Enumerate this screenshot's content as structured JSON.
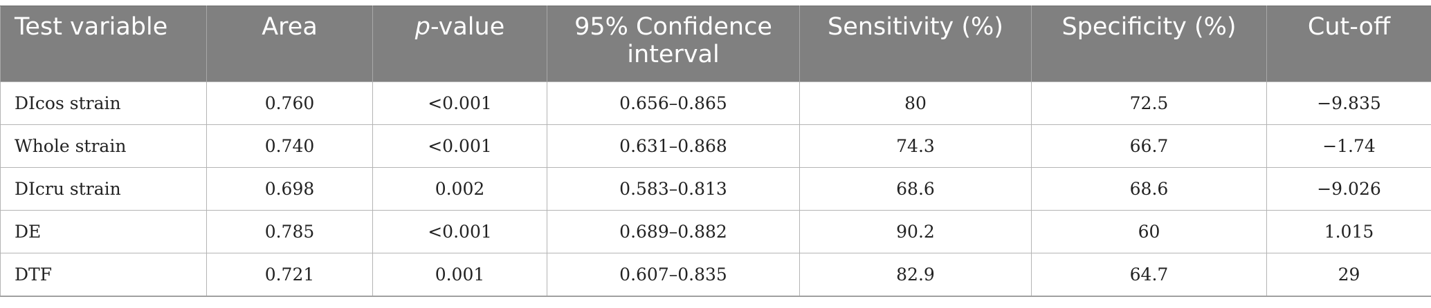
{
  "table": {
    "headers": {
      "test_variable": "Test variable",
      "area": "Area",
      "p_value_italic": "p",
      "p_value_rest": "-value",
      "ci": "95% Confidence interval",
      "sensitivity": "Sensitivity (%)",
      "specificity": "Specificity (%)",
      "cutoff": "Cut-off"
    },
    "rows": [
      {
        "variable": "DIcos strain",
        "area": "0.760",
        "p": "<0.001",
        "ci": "0.656–0.865",
        "sensitivity": "80",
        "specificity": "72.5",
        "cutoff": "−9.835"
      },
      {
        "variable": "Whole strain",
        "area": "0.740",
        "p": "<0.001",
        "ci": "0.631–0.868",
        "sensitivity": "74.3",
        "specificity": "66.7",
        "cutoff": "−1.74"
      },
      {
        "variable": "DIcru strain",
        "area": "0.698",
        "p": "0.002",
        "ci": "0.583–0.813",
        "sensitivity": "68.6",
        "specificity": "68.6",
        "cutoff": "−9.026"
      },
      {
        "variable": "DE",
        "area": "0.785",
        "p": "<0.001",
        "ci": "0.689–0.882",
        "sensitivity": "90.2",
        "specificity": "60",
        "cutoff": "1.015"
      },
      {
        "variable": "DTF",
        "area": "0.721",
        "p": "0.001",
        "ci": "0.607–0.835",
        "sensitivity": "82.9",
        "specificity": "64.7",
        "cutoff": "29"
      }
    ]
  }
}
